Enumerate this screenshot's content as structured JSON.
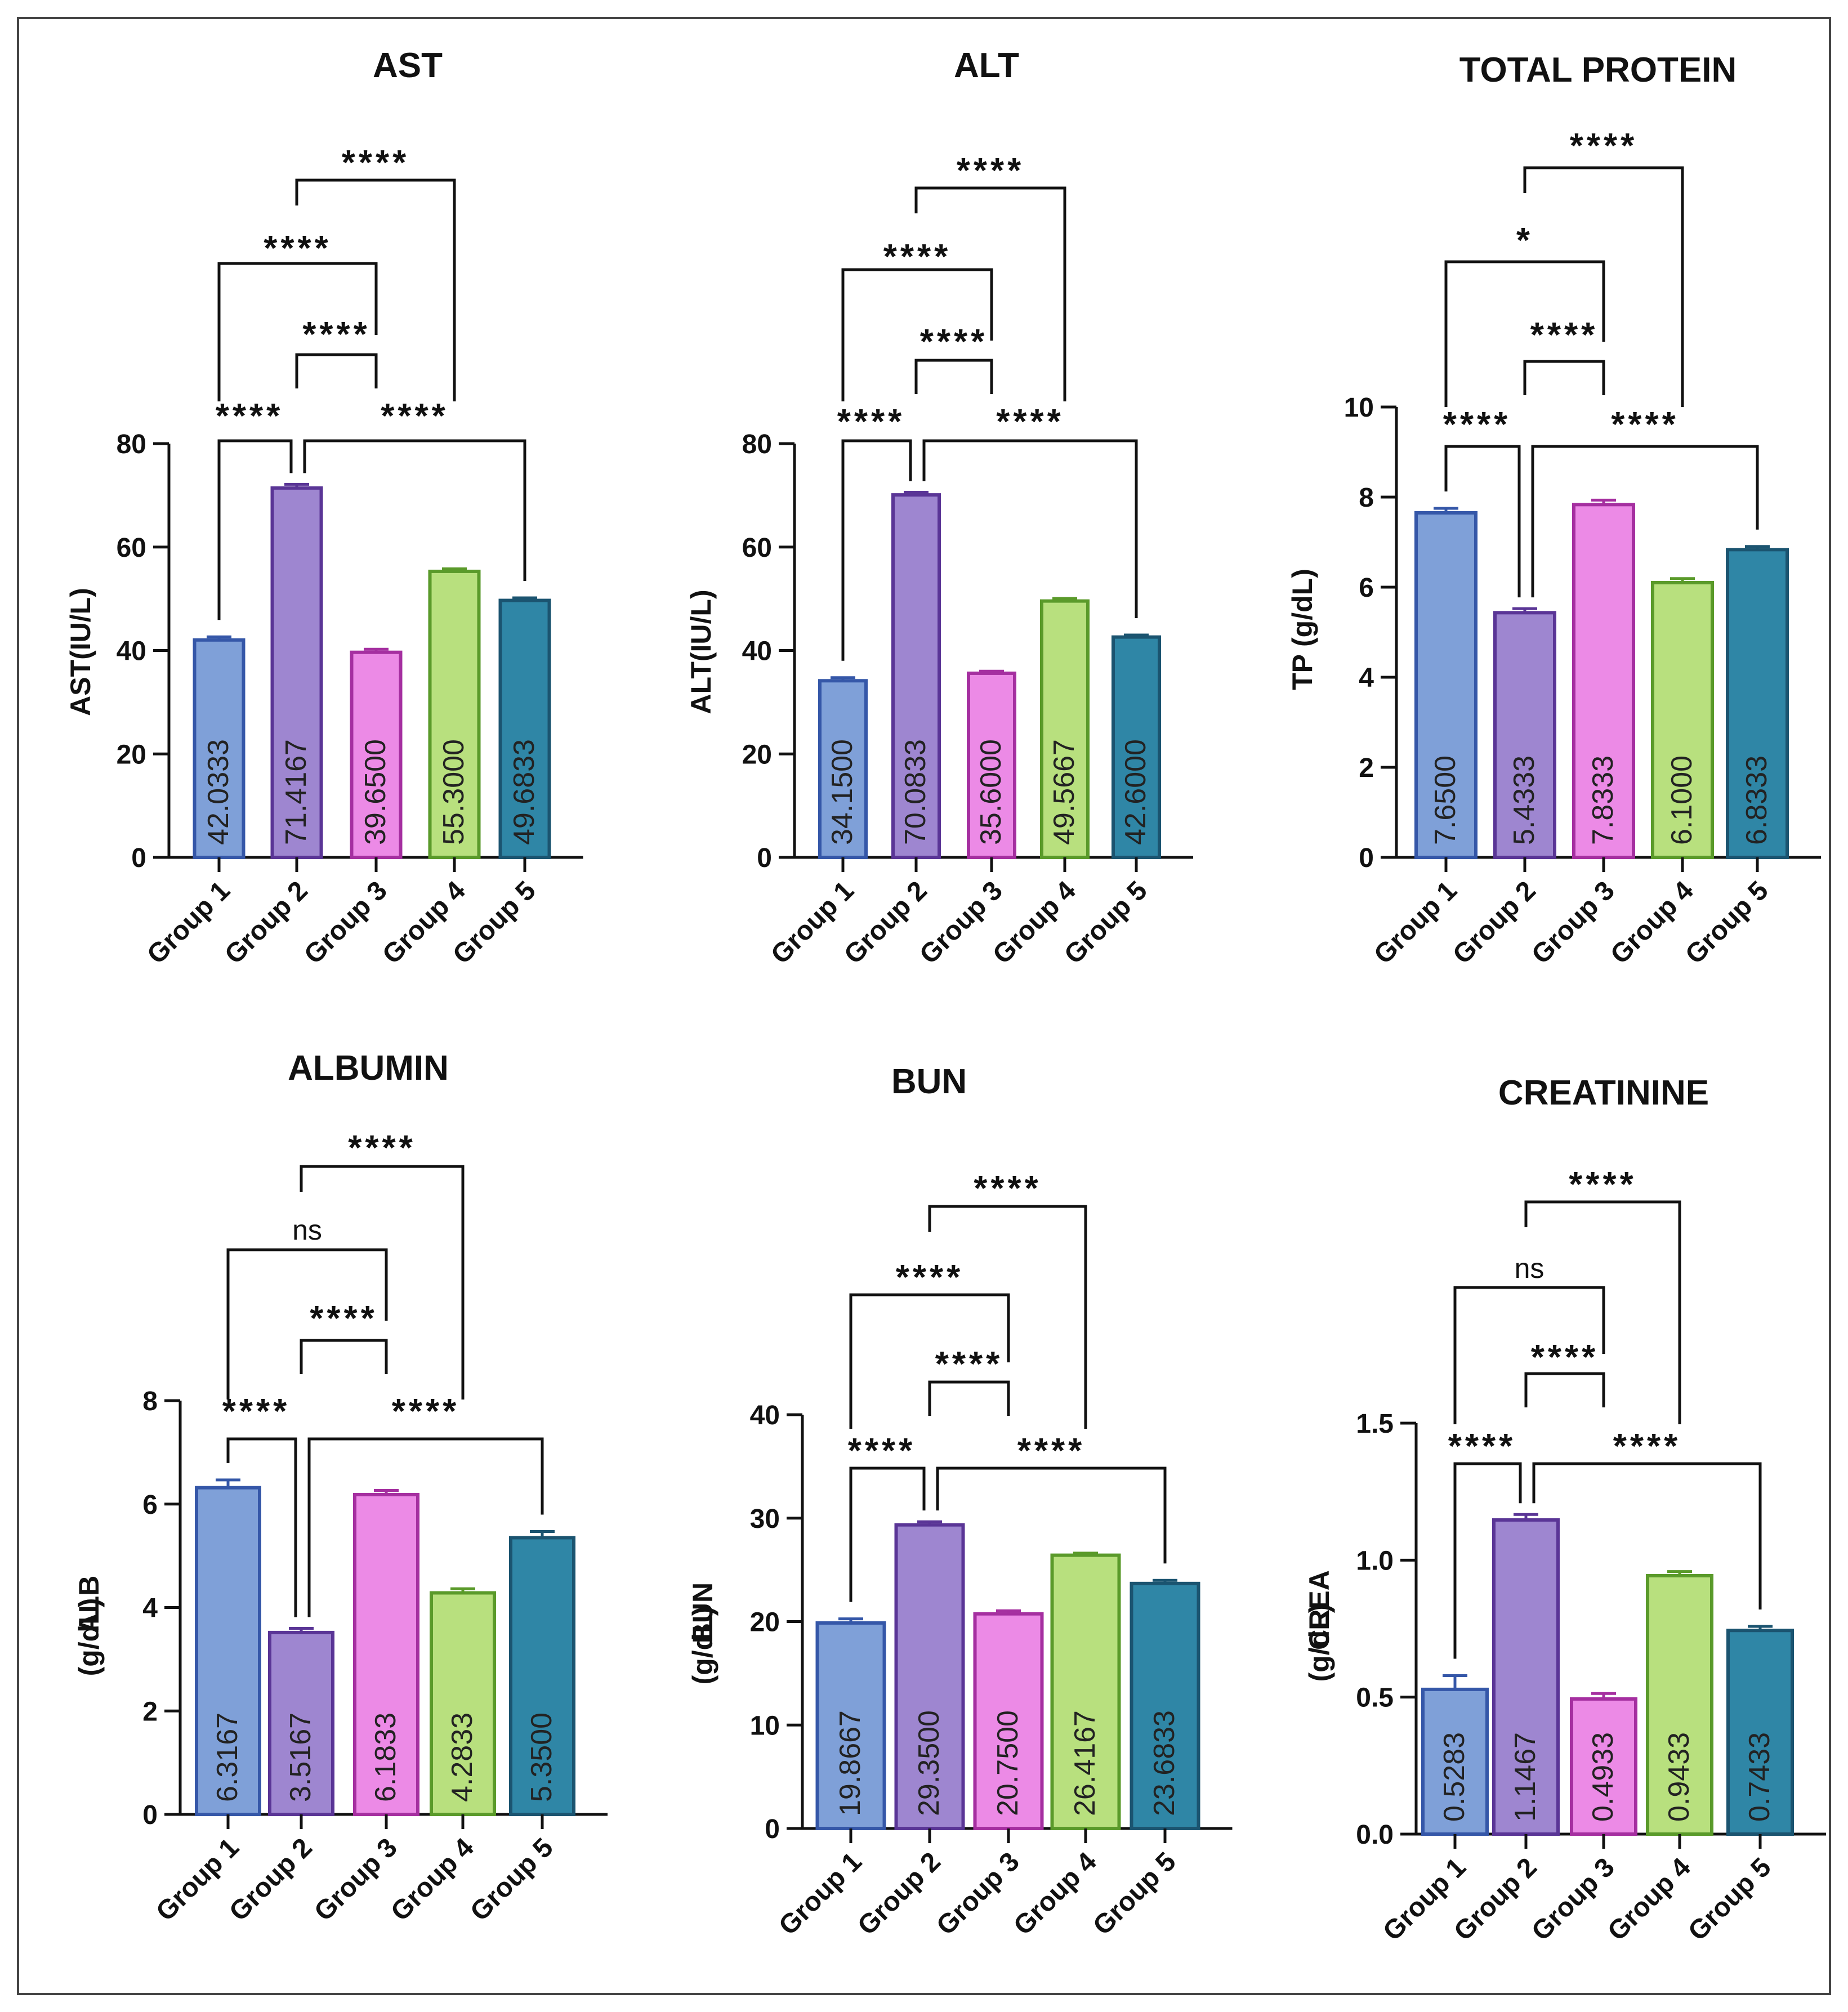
{
  "chart_data": [
    {
      "type": "bar",
      "title": "AST",
      "ylabel": "AST(IU/L)",
      "ylabel2": "",
      "categories": [
        "Group 1",
        "Group 2",
        "Group 3",
        "Group 4",
        "Group 5"
      ],
      "values": [
        42.0333,
        71.4167,
        39.65,
        55.3,
        49.6833
      ],
      "value_labels": [
        "42.0333",
        "71.4167",
        "39.6500",
        "55.3000",
        "49.6833"
      ],
      "errors": [
        0.6,
        0.7,
        0.6,
        0.5,
        0.5
      ],
      "ylim": [
        0,
        80
      ],
      "yticks": [
        0,
        20,
        40,
        60,
        80
      ],
      "ytick_labels": [
        "0",
        "20",
        "40",
        "60",
        "80"
      ],
      "significance": [
        {
          "from": 0,
          "to": 1,
          "label": "****"
        },
        {
          "from": 1,
          "to": 4,
          "label": "****"
        },
        {
          "from": 1,
          "to": 2,
          "label": "****"
        },
        {
          "from": 0,
          "to": 2,
          "label": "****"
        },
        {
          "from": 1,
          "to": 3,
          "label": "****"
        }
      ]
    },
    {
      "type": "bar",
      "title": "ALT",
      "ylabel": "ALT(IU/L)",
      "ylabel2": "",
      "categories": [
        "Group 1",
        "Group 2",
        "Group 3",
        "Group 4",
        "Group 5"
      ],
      "values": [
        34.15,
        70.0833,
        35.6,
        49.5667,
        42.6
      ],
      "value_labels": [
        "34.1500",
        "70.0833",
        "35.6000",
        "49.5667",
        "42.6000"
      ],
      "errors": [
        0.6,
        0.5,
        0.4,
        0.5,
        0.4
      ],
      "ylim": [
        0,
        80
      ],
      "yticks": [
        0,
        20,
        40,
        60,
        80
      ],
      "ytick_labels": [
        "0",
        "20",
        "40",
        "60",
        "80"
      ],
      "significance": [
        {
          "from": 0,
          "to": 1,
          "label": "****"
        },
        {
          "from": 1,
          "to": 4,
          "label": "****"
        },
        {
          "from": 1,
          "to": 2,
          "label": "****"
        },
        {
          "from": 0,
          "to": 2,
          "label": "****"
        },
        {
          "from": 1,
          "to": 3,
          "label": "****"
        }
      ]
    },
    {
      "type": "bar",
      "title": "TOTAL PROTEIN",
      "ylabel": "TP (g/dL)",
      "ylabel2": "",
      "categories": [
        "Group 1",
        "Group 2",
        "Group 3",
        "Group 4",
        "Group 5"
      ],
      "values": [
        7.65,
        5.4333,
        7.8333,
        6.1,
        6.8333
      ],
      "value_labels": [
        "7.6500",
        "5.4333",
        "7.8333",
        "6.1000",
        "6.8333"
      ],
      "errors": [
        0.1,
        0.09,
        0.1,
        0.09,
        0.07
      ],
      "ylim": [
        0,
        10
      ],
      "yticks": [
        0,
        2,
        4,
        6,
        8,
        10
      ],
      "ytick_labels": [
        "0",
        "2",
        "4",
        "6",
        "8",
        "10"
      ],
      "significance": [
        {
          "from": 0,
          "to": 1,
          "label": "****"
        },
        {
          "from": 1,
          "to": 4,
          "label": "****"
        },
        {
          "from": 1,
          "to": 2,
          "label": "****"
        },
        {
          "from": 0,
          "to": 2,
          "label": "*"
        },
        {
          "from": 1,
          "to": 3,
          "label": "****"
        }
      ]
    },
    {
      "type": "bar",
      "title": "ALBUMIN",
      "ylabel": "ALB",
      "ylabel2": "(g/dL)",
      "categories": [
        "Group 1",
        "Group 2",
        "Group 3",
        "Group 4",
        "Group 5"
      ],
      "values": [
        6.3167,
        3.5167,
        6.1833,
        4.2833,
        5.35
      ],
      "value_labels": [
        "6.3167",
        "3.5167",
        "6.1833",
        "4.2833",
        "5.3500"
      ],
      "errors": [
        0.15,
        0.08,
        0.08,
        0.08,
        0.12
      ],
      "ylim": [
        0,
        8
      ],
      "yticks": [
        0,
        2,
        4,
        6,
        8
      ],
      "ytick_labels": [
        "0",
        "2",
        "4",
        "6",
        "8"
      ],
      "significance": [
        {
          "from": 0,
          "to": 1,
          "label": "****"
        },
        {
          "from": 1,
          "to": 4,
          "label": "****"
        },
        {
          "from": 1,
          "to": 2,
          "label": "****"
        },
        {
          "from": 0,
          "to": 2,
          "label": "ns"
        },
        {
          "from": 1,
          "to": 3,
          "label": "****"
        }
      ]
    },
    {
      "type": "bar",
      "title": "BUN",
      "ylabel": "BUN",
      "ylabel2": "(g/dL)",
      "categories": [
        "Group 1",
        "Group 2",
        "Group 3",
        "Group 4",
        "Group 5"
      ],
      "values": [
        19.8667,
        29.35,
        20.75,
        26.4167,
        23.6833
      ],
      "value_labels": [
        "19.8667",
        "29.3500",
        "20.7500",
        "26.4167",
        "23.6833"
      ],
      "errors": [
        0.4,
        0.3,
        0.3,
        0.2,
        0.3
      ],
      "ylim": [
        0,
        40
      ],
      "yticks": [
        0,
        10,
        20,
        30,
        40
      ],
      "ytick_labels": [
        "0",
        "10",
        "20",
        "30",
        "40"
      ],
      "significance": [
        {
          "from": 0,
          "to": 1,
          "label": "****"
        },
        {
          "from": 1,
          "to": 4,
          "label": "****"
        },
        {
          "from": 1,
          "to": 2,
          "label": "****"
        },
        {
          "from": 0,
          "to": 2,
          "label": "****"
        },
        {
          "from": 1,
          "to": 3,
          "label": "****"
        }
      ]
    },
    {
      "type": "bar",
      "title": "CREATININE",
      "ylabel": "CREA",
      "ylabel2": "(g/dL)",
      "categories": [
        "Group 1",
        "Group 2",
        "Group 3",
        "Group 4",
        "Group 5"
      ],
      "values": [
        0.5283,
        1.1467,
        0.4933,
        0.9433,
        0.7433
      ],
      "value_labels": [
        "0.5283",
        "1.1467",
        "0.4933",
        "0.9433",
        "0.7433"
      ],
      "errors": [
        0.05,
        0.02,
        0.02,
        0.015,
        0.015
      ],
      "ylim": [
        0,
        1.5
      ],
      "yticks": [
        0,
        0.5,
        1.0,
        1.5
      ],
      "ytick_labels": [
        "0.0",
        "0.5",
        "1.0",
        "1.5"
      ],
      "significance": [
        {
          "from": 0,
          "to": 1,
          "label": "****"
        },
        {
          "from": 1,
          "to": 4,
          "label": "****"
        },
        {
          "from": 1,
          "to": 2,
          "label": "****"
        },
        {
          "from": 0,
          "to": 2,
          "label": "ns"
        },
        {
          "from": 1,
          "to": 3,
          "label": "****"
        }
      ]
    }
  ],
  "colors": {
    "fills": [
      "#7fa0d8",
      "#9e86d0",
      "#ec8ae6",
      "#b8e07e",
      "#2f86a6"
    ],
    "strokes": [
      "#3557a8",
      "#5a3596",
      "#a52fa0",
      "#5a9a2a",
      "#1b5470"
    ],
    "axis": "#111111"
  }
}
